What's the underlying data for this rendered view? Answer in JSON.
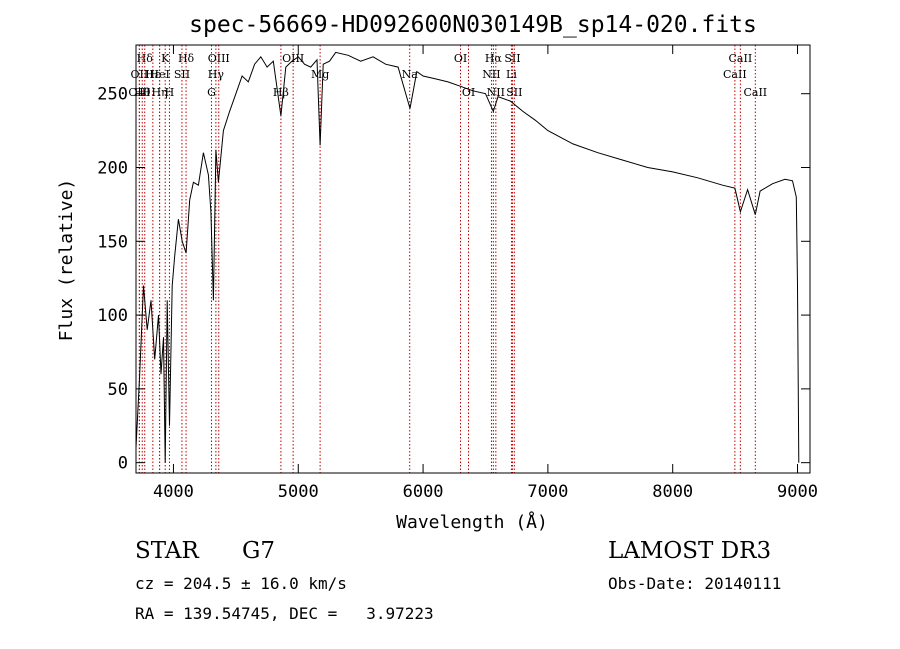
{
  "chart_data": {
    "type": "line",
    "title": "spec-56669-HD092600N030149B_sp14-020.fits",
    "xlabel": "Wavelength (Å)",
    "ylabel": "Flux (relative)",
    "xlim": [
      3700,
      9100
    ],
    "ylim": [
      -7,
      283
    ],
    "x_ticks": [
      4000,
      5000,
      6000,
      7000,
      8000,
      9000
    ],
    "x_tick_labels": [
      "4000",
      "5000",
      "6000",
      "7000",
      "8000",
      "9000"
    ],
    "y_ticks": [
      0,
      50,
      100,
      150,
      200,
      250
    ],
    "y_tick_labels": [
      "0",
      "50",
      "100",
      "150",
      "200",
      "250"
    ],
    "series": [
      {
        "name": "spectrum",
        "x": [
          3700,
          3730,
          3760,
          3790,
          3820,
          3850,
          3880,
          3900,
          3920,
          3934,
          3950,
          3968,
          3990,
          4010,
          4040,
          4070,
          4101,
          4130,
          4160,
          4200,
          4240,
          4280,
          4300,
          4320,
          4340,
          4360,
          4400,
          4450,
          4500,
          4550,
          4600,
          4650,
          4700,
          4750,
          4800,
          4861,
          4900,
          4950,
          5000,
          5050,
          5100,
          5150,
          5175,
          5200,
          5250,
          5300,
          5400,
          5500,
          5600,
          5700,
          5800,
          5895,
          5950,
          6000,
          6100,
          6200,
          6300,
          6400,
          6500,
          6563,
          6600,
          6700,
          6800,
          6900,
          7000,
          7200,
          7400,
          7600,
          7800,
          8000,
          8200,
          8400,
          8498,
          8542,
          8600,
          8662,
          8700,
          8800,
          8900,
          8960,
          8990,
          9000,
          9010
        ],
        "y": [
          10,
          60,
          120,
          90,
          110,
          70,
          100,
          60,
          85,
          0,
          110,
          25,
          120,
          140,
          165,
          150,
          142,
          178,
          190,
          188,
          210,
          195,
          170,
          110,
          212,
          190,
          225,
          238,
          250,
          262,
          258,
          270,
          275,
          268,
          272,
          235,
          268,
          272,
          275,
          270,
          268,
          273,
          215,
          270,
          272,
          278,
          276,
          272,
          275,
          270,
          268,
          240,
          265,
          262,
          260,
          258,
          255,
          252,
          250,
          238,
          248,
          245,
          238,
          232,
          225,
          216,
          210,
          205,
          200,
          197,
          193,
          188,
          186,
          170,
          185,
          168,
          184,
          189,
          192,
          191,
          180,
          120,
          0
        ]
      }
    ],
    "lines": [
      {
        "label": "OII",
        "x": 3727,
        "row": 2
      },
      {
        "label": "OIII",
        "x": 3727,
        "row": 3
      },
      {
        "label": "Hθ",
        "x": 3750,
        "row": 3
      },
      {
        "label": "Hδ",
        "x": 3770,
        "row": 1
      },
      {
        "label": "Hε",
        "x": 3835,
        "row": 2
      },
      {
        "label": "Hη",
        "x": 3889,
        "row": 3
      },
      {
        "label": "K",
        "x": 3934,
        "row": 1
      },
      {
        "label": "HeI",
        "x": 3889,
        "row": 2
      },
      {
        "label": "SII",
        "x": 4068,
        "row": 2
      },
      {
        "label": "H",
        "x": 3968,
        "row": 3
      },
      {
        "label": "Hδ",
        "x": 4101,
        "row": 1
      },
      {
        "label": "OIII",
        "x": 4363,
        "row": 1
      },
      {
        "label": "Hγ",
        "x": 4340,
        "row": 2
      },
      {
        "label": "G",
        "x": 4305,
        "row": 3
      },
      {
        "label": "Hβ",
        "x": 4861,
        "row": 3
      },
      {
        "label": "OIII",
        "x": 4959,
        "row": 1
      },
      {
        "label": "Mg",
        "x": 5175,
        "row": 2
      },
      {
        "label": "Na",
        "x": 5893,
        "row": 2
      },
      {
        "label": "OI",
        "x": 6300,
        "row": 1
      },
      {
        "label": "OI",
        "x": 6364,
        "row": 3
      },
      {
        "label": "Hα",
        "x": 6563,
        "row": 1
      },
      {
        "label": "SII",
        "x": 6716,
        "row": 1
      },
      {
        "label": "NII",
        "x": 6548,
        "row": 2
      },
      {
        "label": "Li",
        "x": 6708,
        "row": 2
      },
      {
        "label": "NII",
        "x": 6583,
        "row": 3
      },
      {
        "label": "SII",
        "x": 6731,
        "row": 3
      },
      {
        "label": "CaII",
        "x": 8542,
        "row": 1
      },
      {
        "label": "CaII",
        "x": 8498,
        "row": 2
      },
      {
        "label": "CaII",
        "x": 8662,
        "row": 3
      }
    ]
  },
  "info": {
    "object_class": "STAR",
    "subclass": "G7",
    "survey": "LAMOST DR3",
    "redshift": "cz = 204.5 ± 16.0 km/s",
    "obs_date": "Obs-Date: 20140111",
    "coords": "RA = 139.54745, DEC =   3.97223"
  }
}
